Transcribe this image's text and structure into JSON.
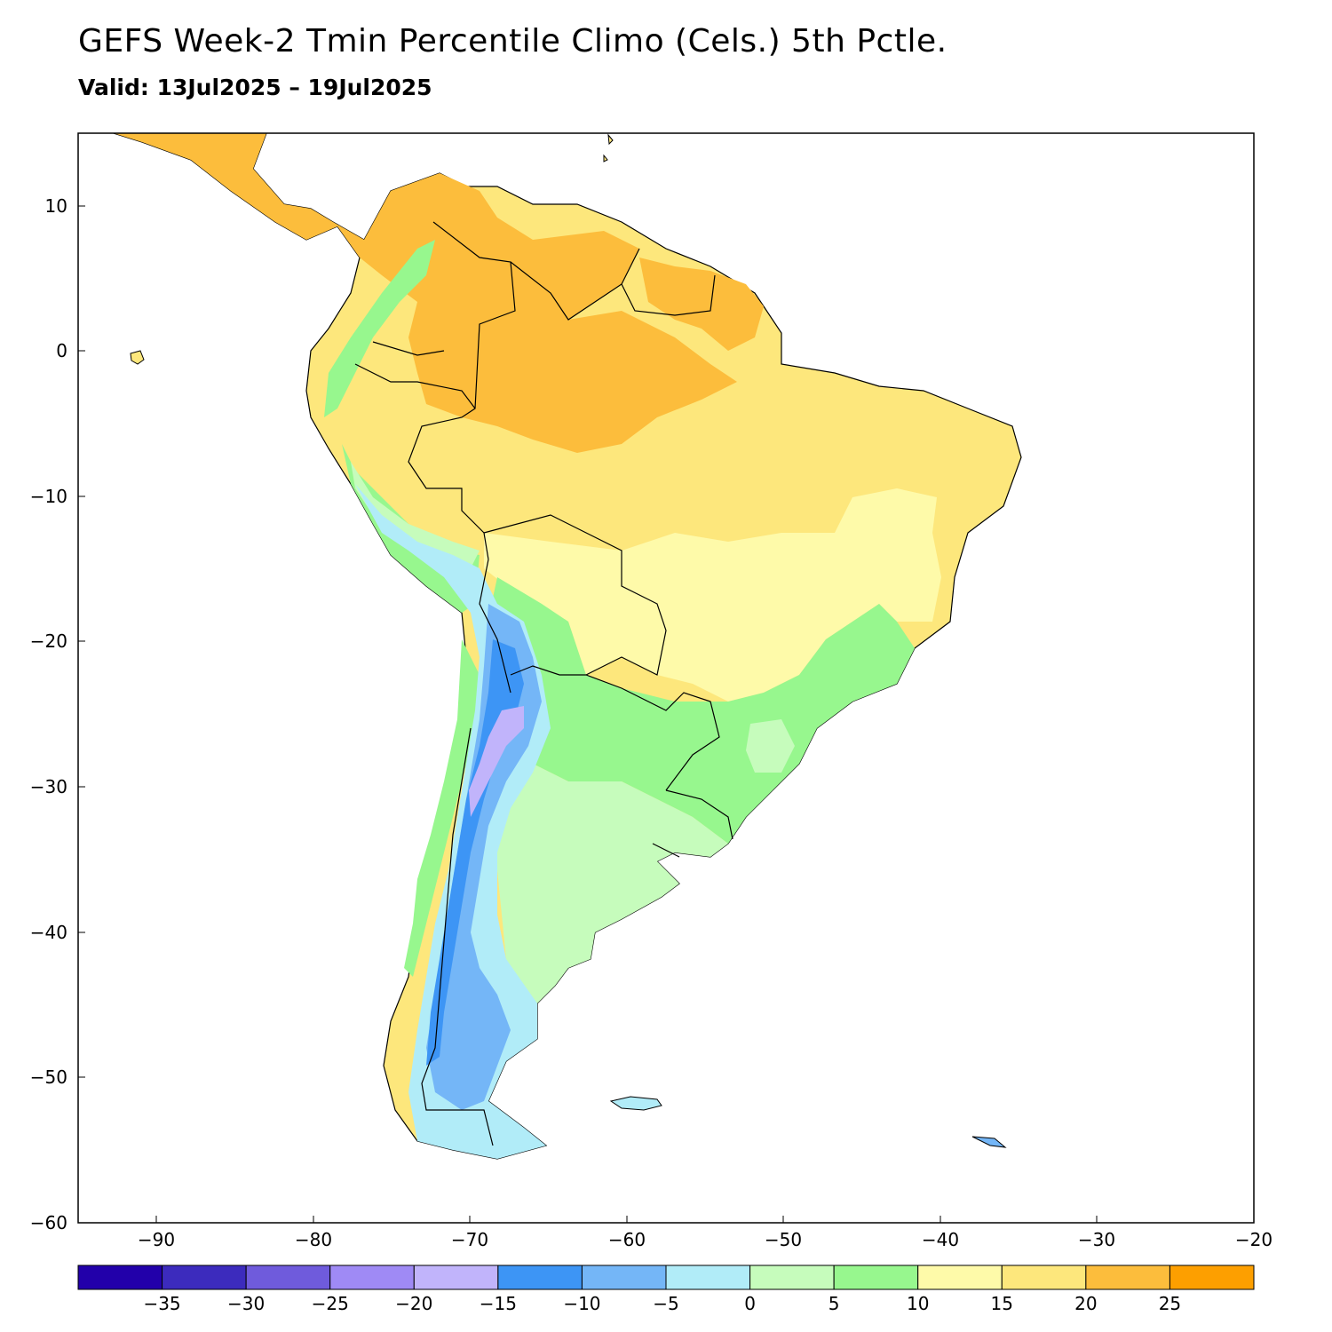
{
  "header": {
    "title": "GEFS Week-2 Tmin Percentile Climo (Cels.) 5th Pctle.",
    "valid": "Valid: 13Jul2025 – 19Jul2025"
  },
  "map": {
    "projection": "lat-lon",
    "lon_range": [
      -95,
      -20
    ],
    "lat_range": [
      -60,
      15
    ],
    "x_ticks": [
      "−90",
      "−80",
      "−70",
      "−60",
      "−50",
      "−40",
      "−30",
      "−20"
    ],
    "y_ticks": [
      "10",
      "0",
      "−10",
      "−20",
      "−30",
      "−40",
      "−50",
      "−60"
    ],
    "region": "South America"
  },
  "colorbar": {
    "labels": [
      "−35",
      "−30",
      "−25",
      "−20",
      "−15",
      "−10",
      "−5",
      "0",
      "5",
      "10",
      "15",
      "20",
      "25"
    ],
    "colors": [
      "#2200aa",
      "#3c2bbd",
      "#6f5bdc",
      "#9f8af5",
      "#c1b4fb",
      "#3d95f5",
      "#74b6f7",
      "#b1ecf8",
      "#c6fcbc",
      "#97f78e",
      "#fefaa9",
      "#fde77c",
      "#fcbd3c",
      "#fd9f00"
    ]
  }
}
